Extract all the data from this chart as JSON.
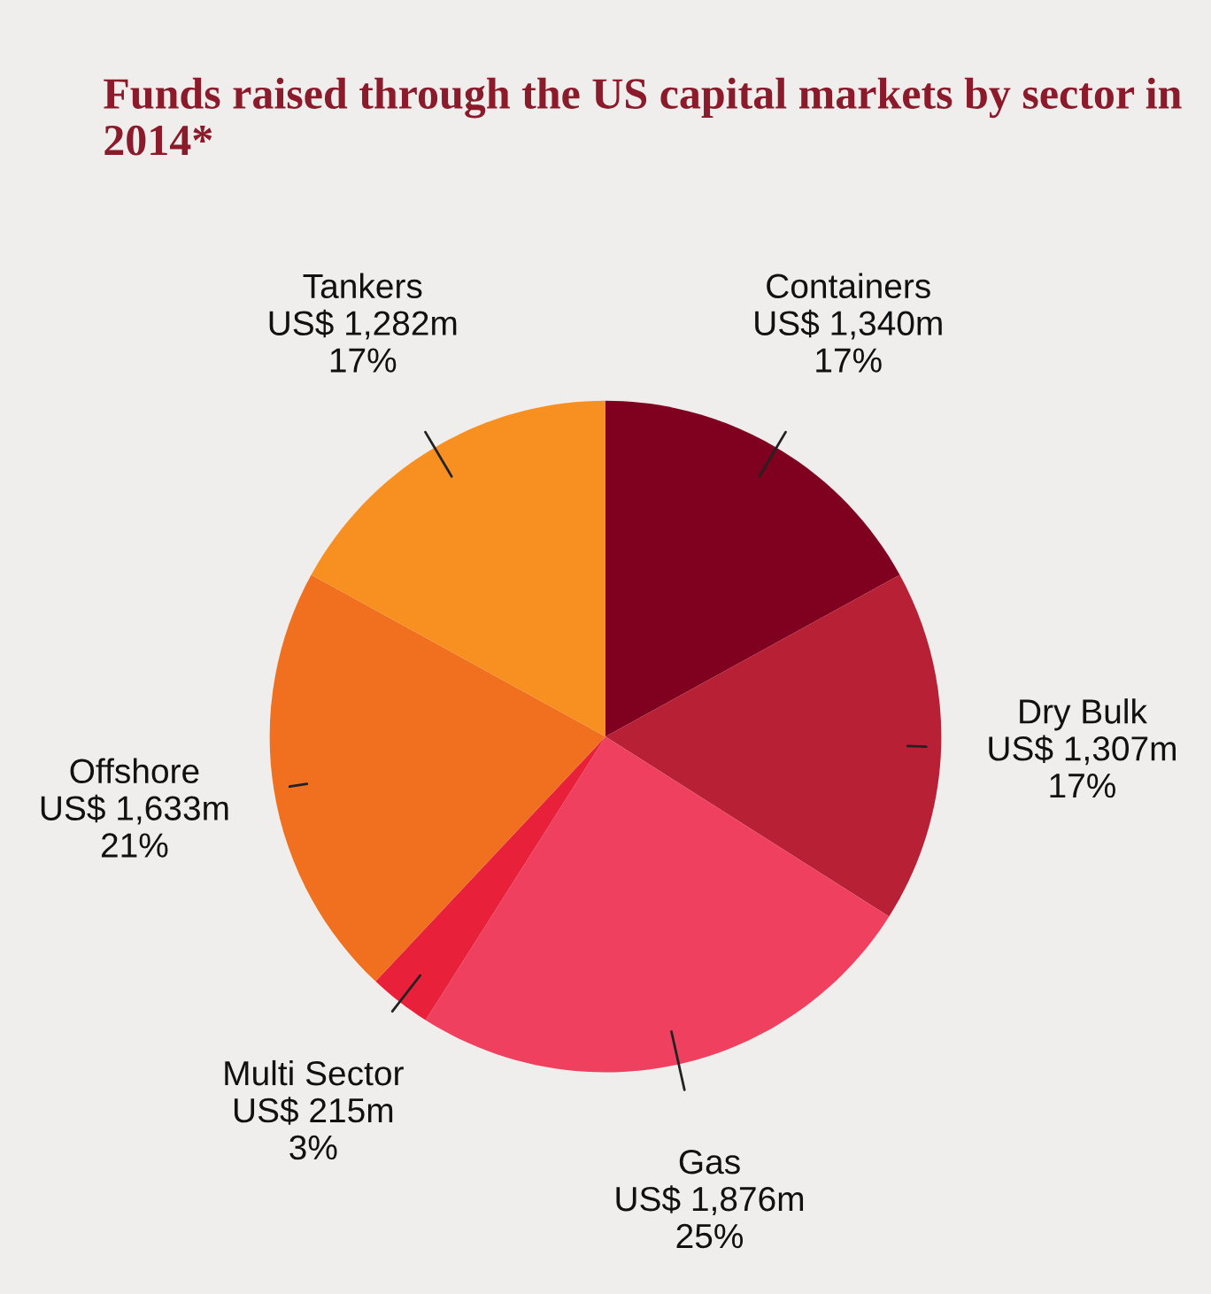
{
  "chart_data": {
    "type": "pie",
    "title": "Funds raised through the US capital markets by sector in 2014*",
    "categories": [
      "Containers",
      "Dry Bulk",
      "Gas",
      "Multi Sector",
      "Offshore",
      "Tankers"
    ],
    "values": [
      17,
      17,
      25,
      3,
      21,
      17
    ],
    "value_labels": [
      "US$ 1,340m\n17%",
      "US$ 1,307m\n17%",
      "US$ 1,876m\n25%",
      "US$ 215m\n3%",
      "US$ 1,633m\n21%",
      "US$ 1,282m\n17%"
    ],
    "colors": [
      "#800020",
      "#b82035",
      "#f04060",
      "#e8203a",
      "#f07020",
      "#f79020"
    ],
    "legend": false
  }
}
